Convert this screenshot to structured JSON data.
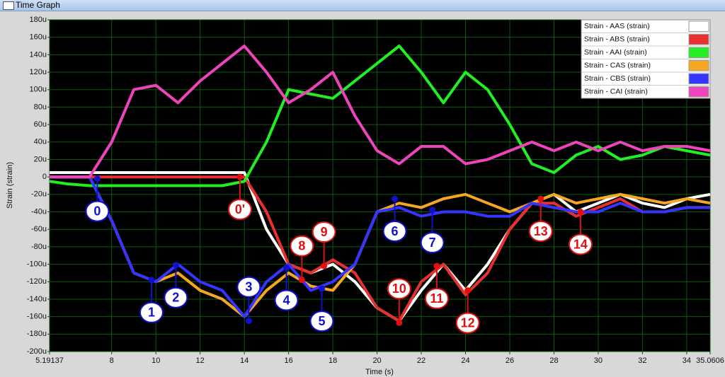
{
  "window": {
    "title": "Time Graph"
  },
  "chart_data": {
    "type": "line",
    "x_label": "Time (s)",
    "y_label": "Strain (strain)",
    "xlim": [
      5.19137,
      35.0606
    ],
    "xticks": [
      5.19137,
      8,
      10,
      12,
      14,
      16,
      18,
      20,
      22,
      24,
      26,
      28,
      30,
      32,
      34,
      35.0606
    ],
    "ylim": [
      -200,
      180
    ],
    "yticks": [
      {
        "value": -200,
        "label": "-200u"
      },
      {
        "value": -180,
        "label": "-180u"
      },
      {
        "value": -160,
        "label": "-160u"
      },
      {
        "value": -140,
        "label": "-140u"
      },
      {
        "value": -120,
        "label": "-120u"
      },
      {
        "value": -100,
        "label": "-100u"
      },
      {
        "value": -80,
        "label": "-80u"
      },
      {
        "value": -60,
        "label": "-60u"
      },
      {
        "value": -40,
        "label": "-40u"
      },
      {
        "value": -20,
        "label": "-20u"
      },
      {
        "value": 0,
        "label": "0"
      },
      {
        "value": 20,
        "label": "20u"
      },
      {
        "value": 40,
        "label": "40u"
      },
      {
        "value": 60,
        "label": "60u"
      },
      {
        "value": 80,
        "label": "80u"
      },
      {
        "value": 100,
        "label": "100u"
      },
      {
        "value": 120,
        "label": "120u"
      },
      {
        "value": 140,
        "label": "140u"
      },
      {
        "value": 160,
        "label": "160u"
      },
      {
        "value": 180,
        "label": "180u"
      }
    ],
    "grid": true,
    "grid_color": "#0b5a0b",
    "legend": "upper right",
    "x": [
      5.19137,
      6,
      7,
      8,
      9,
      10,
      11,
      12,
      13,
      14,
      15,
      16,
      17,
      18,
      19,
      20,
      21,
      22,
      23,
      24,
      25,
      26,
      27,
      28,
      29,
      30,
      31,
      32,
      33,
      34,
      35.0606
    ],
    "series": [
      {
        "name": "Strain - AAS (strain)",
        "color": "#ffffff",
        "values": [
          5,
          5,
          5,
          5,
          5,
          5,
          5,
          5,
          5,
          5,
          -60,
          -100,
          -110,
          -100,
          -120,
          -150,
          -165,
          -130,
          -100,
          -130,
          -100,
          -60,
          -30,
          -20,
          -40,
          -30,
          -20,
          -30,
          -35,
          -25,
          -20
        ]
      },
      {
        "name": "Strain - ABS (strain)",
        "color": "#e83030",
        "values": [
          0,
          0,
          0,
          0,
          0,
          0,
          0,
          0,
          0,
          0,
          -40,
          -100,
          -110,
          -95,
          -110,
          -150,
          -165,
          -120,
          -100,
          -135,
          -110,
          -60,
          -30,
          -30,
          -45,
          -35,
          -25,
          -40,
          -40,
          -35,
          -35
        ]
      },
      {
        "name": "Strain - AAI (strain)",
        "color": "#22ee22",
        "values": [
          -5,
          -8,
          -10,
          -10,
          -10,
          -10,
          -10,
          -10,
          -10,
          -5,
          40,
          100,
          95,
          90,
          110,
          130,
          150,
          120,
          85,
          120,
          100,
          60,
          15,
          5,
          25,
          35,
          20,
          25,
          35,
          30,
          25
        ]
      },
      {
        "name": "Strain - CAS (strain)",
        "color": "#f5a623",
        "values": [
          0,
          0,
          0,
          -50,
          -110,
          -120,
          -110,
          -130,
          -140,
          -160,
          -130,
          -110,
          -125,
          -130,
          -100,
          -40,
          -30,
          -35,
          -25,
          -20,
          -30,
          -40,
          -30,
          -20,
          -30,
          -25,
          -20,
          -25,
          -30,
          -25,
          -30
        ]
      },
      {
        "name": "Strain - CBS (strain)",
        "color": "#3535ff",
        "values": [
          0,
          0,
          0,
          -50,
          -110,
          -120,
          -100,
          -120,
          -130,
          -160,
          -120,
          -100,
          -130,
          -120,
          -100,
          -40,
          -35,
          -45,
          -40,
          -40,
          -45,
          -45,
          -30,
          -35,
          -40,
          -40,
          -30,
          -40,
          -40,
          -35,
          -35
        ]
      },
      {
        "name": "Strain - CAI (strain)",
        "color": "#ee44bb",
        "values": [
          0,
          0,
          0,
          40,
          100,
          105,
          85,
          110,
          130,
          150,
          120,
          85,
          100,
          120,
          70,
          30,
          15,
          35,
          35,
          15,
          20,
          30,
          40,
          30,
          40,
          30,
          40,
          30,
          35,
          35,
          30
        ]
      }
    ],
    "annotations": [
      {
        "label": "0",
        "x": 7.35,
        "y": -2,
        "color": "#1010d0",
        "placement": "below"
      },
      {
        "label": "1",
        "x": 9.8,
        "y": -118,
        "color": "#1010d0",
        "placement": "below"
      },
      {
        "label": "2",
        "x": 10.9,
        "y": -101,
        "color": "#1010d0",
        "placement": "below"
      },
      {
        "label": "3",
        "x": 14.2,
        "y": -165,
        "color": "#1010d0",
        "placement": "above"
      },
      {
        "label": "4",
        "x": 15.9,
        "y": -104,
        "color": "#1010d0",
        "placement": "below"
      },
      {
        "label": "5",
        "x": 17.5,
        "y": -128,
        "color": "#1010d0",
        "placement": "below"
      },
      {
        "label": "6",
        "x": 20.8,
        "y": -25,
        "color": "#1010d0",
        "placement": "below"
      },
      {
        "label": "7",
        "x": 22.5,
        "y": -38,
        "color": "#1010d0",
        "placement": "below"
      },
      {
        "label": "0'",
        "x": 13.8,
        "y": 0,
        "color": "#e01010",
        "placement": "below"
      },
      {
        "label": "8",
        "x": 16.6,
        "y": -118,
        "color": "#e01010",
        "placement": "above"
      },
      {
        "label": "9",
        "x": 17.6,
        "y": -102,
        "color": "#e01010",
        "placement": "above"
      },
      {
        "label": "10",
        "x": 21,
        "y": -167,
        "color": "#e01010",
        "placement": "above"
      },
      {
        "label": "11",
        "x": 22.7,
        "y": -102,
        "color": "#e01010",
        "placement": "below"
      },
      {
        "label": "12",
        "x": 24.1,
        "y": -130,
        "color": "#e01010",
        "placement": "below"
      },
      {
        "label": "13",
        "x": 27.4,
        "y": -25,
        "color": "#e01010",
        "placement": "below"
      },
      {
        "label": "14",
        "x": 29.2,
        "y": -40,
        "color": "#e01010",
        "placement": "below"
      }
    ]
  }
}
